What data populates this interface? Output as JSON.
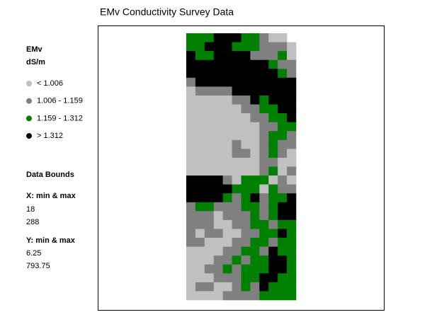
{
  "header": {
    "title": "EMv Conductivity Survey Data"
  },
  "legend": {
    "title": "EMv",
    "units": "dS/m",
    "items": [
      {
        "label": "< 1.006",
        "color": "#c0c0c0"
      },
      {
        "label": "1.006 - 1.159",
        "color": "#808080"
      },
      {
        "label": "1.159 - 1.312",
        "color": "#008000"
      },
      {
        "label": "> 1.312",
        "color": "#000000"
      }
    ]
  },
  "bounds": {
    "title": "Data Bounds",
    "x": {
      "label": "X: min & max",
      "min": "18",
      "max": "288"
    },
    "y": {
      "label": "Y: min & max",
      "min": "6.25",
      "max": "793.75"
    }
  },
  "map": {
    "cells": [
      [
        2,
        2,
        2,
        3,
        3,
        3,
        2,
        2,
        1,
        0,
        0,
        null
      ],
      [
        2,
        2,
        3,
        3,
        3,
        2,
        2,
        2,
        1,
        1,
        1,
        0
      ],
      [
        3,
        2,
        2,
        3,
        3,
        3,
        3,
        1,
        1,
        1,
        2,
        0
      ],
      [
        3,
        3,
        3,
        3,
        3,
        3,
        3,
        3,
        3,
        2,
        1,
        1
      ],
      [
        3,
        3,
        3,
        3,
        3,
        3,
        3,
        3,
        3,
        3,
        2,
        1
      ],
      [
        1,
        3,
        3,
        3,
        3,
        3,
        3,
        3,
        3,
        3,
        3,
        3
      ],
      [
        0,
        1,
        1,
        1,
        1,
        3,
        3,
        3,
        3,
        3,
        3,
        3
      ],
      [
        0,
        0,
        0,
        0,
        0,
        1,
        1,
        3,
        2,
        3,
        3,
        3
      ],
      [
        0,
        0,
        0,
        0,
        0,
        0,
        1,
        1,
        2,
        2,
        3,
        3
      ],
      [
        0,
        0,
        0,
        0,
        0,
        0,
        0,
        1,
        1,
        2,
        2,
        3
      ],
      [
        0,
        0,
        0,
        0,
        0,
        0,
        0,
        0,
        1,
        1,
        2,
        2
      ],
      [
        0,
        0,
        0,
        0,
        0,
        0,
        0,
        0,
        1,
        2,
        2,
        1
      ],
      [
        0,
        0,
        0,
        0,
        0,
        1,
        0,
        0,
        1,
        2,
        1,
        1
      ],
      [
        0,
        0,
        0,
        0,
        0,
        1,
        1,
        0,
        1,
        2,
        1,
        0
      ],
      [
        0,
        0,
        0,
        0,
        0,
        0,
        0,
        0,
        1,
        1,
        0,
        0
      ],
      [
        0,
        0,
        0,
        0,
        0,
        0,
        0,
        0,
        1,
        2,
        0,
        1
      ],
      [
        3,
        3,
        3,
        3,
        1,
        0,
        2,
        2,
        2,
        0,
        1,
        0
      ],
      [
        3,
        3,
        3,
        3,
        3,
        2,
        2,
        2,
        0,
        2,
        1,
        1
      ],
      [
        3,
        3,
        3,
        3,
        2,
        1,
        2,
        3,
        1,
        2,
        2,
        3
      ],
      [
        1,
        2,
        2,
        1,
        1,
        1,
        2,
        2,
        1,
        2,
        3,
        3
      ],
      [
        1,
        1,
        1,
        0,
        1,
        1,
        1,
        2,
        1,
        2,
        3,
        3
      ],
      [
        1,
        1,
        1,
        0,
        0,
        1,
        1,
        2,
        2,
        1,
        2,
        2
      ],
      [
        1,
        0,
        1,
        1,
        0,
        0,
        1,
        1,
        2,
        2,
        3,
        2
      ],
      [
        1,
        1,
        0,
        0,
        0,
        1,
        1,
        2,
        2,
        1,
        2,
        2
      ],
      [
        0,
        0,
        0,
        0,
        1,
        1,
        2,
        2,
        1,
        3,
        2,
        2
      ],
      [
        0,
        0,
        0,
        1,
        1,
        2,
        1,
        2,
        2,
        3,
        3,
        2
      ],
      [
        0,
        0,
        1,
        1,
        2,
        1,
        2,
        2,
        2,
        3,
        3,
        2
      ],
      [
        0,
        0,
        0,
        1,
        1,
        1,
        2,
        2,
        3,
        3,
        2,
        2
      ],
      [
        0,
        1,
        1,
        0,
        0,
        1,
        2,
        1,
        3,
        2,
        2,
        2
      ],
      [
        0,
        0,
        0,
        0,
        1,
        1,
        1,
        1,
        2,
        2,
        2,
        2
      ]
    ]
  }
}
